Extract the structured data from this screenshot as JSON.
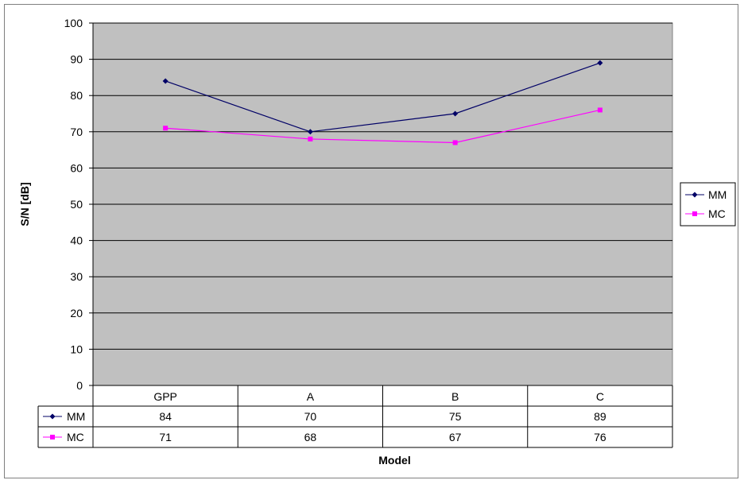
{
  "chart_data": {
    "type": "line",
    "categories": [
      "GPP",
      "A",
      "B",
      "C"
    ],
    "series": [
      {
        "name": "MM",
        "values": [
          84,
          70,
          75,
          89
        ],
        "color": "#000066",
        "marker": "diamond"
      },
      {
        "name": "MC",
        "values": [
          71,
          68,
          67,
          76
        ],
        "color": "#FF00FF",
        "marker": "square"
      }
    ],
    "ylabel": "S/N [dB]",
    "xlabel": "Model",
    "ylim": [
      0,
      100
    ],
    "yticks": [
      0,
      10,
      20,
      30,
      40,
      50,
      60,
      70,
      80,
      90,
      100
    ],
    "grid": true,
    "legend": "right",
    "data_table": true,
    "plot_background": "#C0C0C0"
  }
}
